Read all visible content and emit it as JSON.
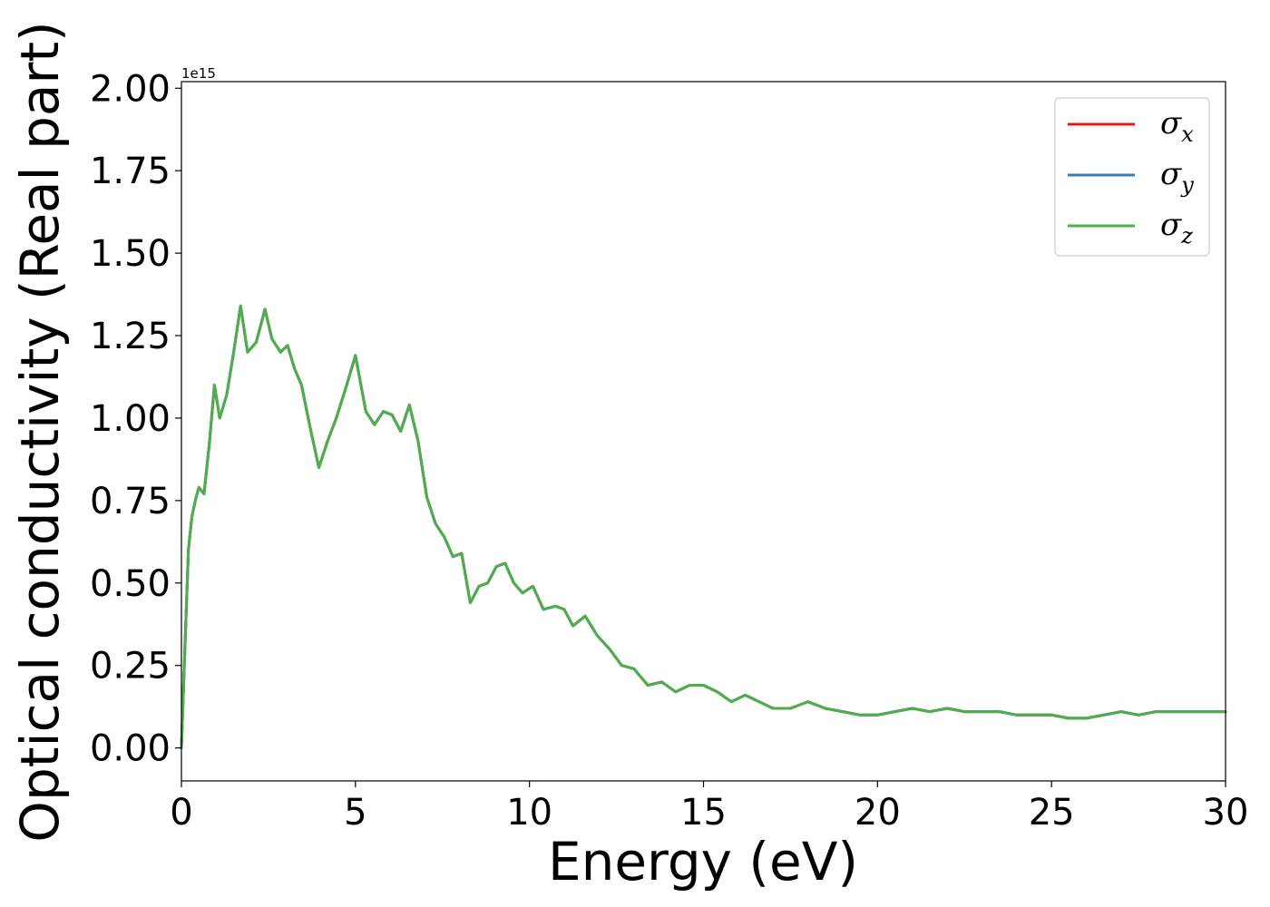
{
  "chart_data": {
    "type": "line",
    "xlabel": "Energy (eV)",
    "ylabel": "Optical conductivity (Real part)",
    "y_offset_text": "1e15",
    "xlim": [
      0,
      30
    ],
    "ylim": [
      -0.1,
      2.02
    ],
    "y_scale": 1000000000000000.0,
    "x_ticks": [
      0,
      5,
      10,
      15,
      20,
      25,
      30
    ],
    "x_tick_labels": [
      "0",
      "5",
      "10",
      "15",
      "20",
      "25",
      "30"
    ],
    "y_ticks": [
      0.0,
      0.25,
      0.5,
      0.75,
      1.0,
      1.25,
      1.5,
      1.75,
      2.0
    ],
    "y_tick_labels": [
      "0.00",
      "0.25",
      "0.50",
      "0.75",
      "1.00",
      "1.25",
      "1.50",
      "1.75",
      "2.00"
    ],
    "grid": false,
    "legend_position": "top-right",
    "x": [
      0,
      0.1,
      0.2,
      0.3,
      0.4,
      0.5,
      0.65,
      0.8,
      0.95,
      1.1,
      1.3,
      1.5,
      1.7,
      1.9,
      2.15,
      2.4,
      2.6,
      2.85,
      3.05,
      3.25,
      3.45,
      3.7,
      3.95,
      4.2,
      4.45,
      4.75,
      5.0,
      5.3,
      5.55,
      5.8,
      6.05,
      6.3,
      6.55,
      6.8,
      7.05,
      7.3,
      7.55,
      7.8,
      8.05,
      8.3,
      8.55,
      8.8,
      9.05,
      9.3,
      9.55,
      9.8,
      10.1,
      10.4,
      10.75,
      11.0,
      11.25,
      11.6,
      11.95,
      12.3,
      12.65,
      13.0,
      13.4,
      13.8,
      14.2,
      14.6,
      15.0,
      15.4,
      15.8,
      16.2,
      16.6,
      17.0,
      17.5,
      18.0,
      18.5,
      19.0,
      19.5,
      20.0,
      20.5,
      21.0,
      21.5,
      22.0,
      22.5,
      23.0,
      23.5,
      24.0,
      24.5,
      25.0,
      25.5,
      26.0,
      26.5,
      27.0,
      27.5,
      28.0,
      28.5,
      29.0,
      29.5,
      30.0
    ],
    "series": [
      {
        "name": "σ_x",
        "color": "#e41a1c",
        "values": [
          0.0,
          0.3,
          0.6,
          0.7,
          0.75,
          0.79,
          0.77,
          0.92,
          1.1,
          1.0,
          1.07,
          1.2,
          1.34,
          1.2,
          1.23,
          1.33,
          1.24,
          1.2,
          1.22,
          1.15,
          1.1,
          0.97,
          0.85,
          0.93,
          1.0,
          1.1,
          1.19,
          1.02,
          0.98,
          1.02,
          1.01,
          0.96,
          1.04,
          0.93,
          0.76,
          0.68,
          0.64,
          0.58,
          0.59,
          0.44,
          0.49,
          0.5,
          0.55,
          0.56,
          0.5,
          0.47,
          0.49,
          0.42,
          0.43,
          0.42,
          0.37,
          0.4,
          0.34,
          0.3,
          0.25,
          0.24,
          0.19,
          0.2,
          0.17,
          0.19,
          0.19,
          0.17,
          0.14,
          0.16,
          0.14,
          0.12,
          0.12,
          0.14,
          0.12,
          0.11,
          0.1,
          0.1,
          0.11,
          0.12,
          0.11,
          0.12,
          0.11,
          0.11,
          0.11,
          0.1,
          0.1,
          0.1,
          0.09,
          0.09,
          0.1,
          0.11,
          0.1,
          0.11,
          0.11,
          0.11,
          0.11,
          0.11
        ]
      },
      {
        "name": "σ_y",
        "color": "#377eb8",
        "values": [
          0.0,
          0.3,
          0.6,
          0.7,
          0.75,
          0.79,
          0.77,
          0.92,
          1.1,
          1.0,
          1.07,
          1.2,
          1.34,
          1.2,
          1.23,
          1.33,
          1.24,
          1.2,
          1.22,
          1.15,
          1.1,
          0.97,
          0.85,
          0.93,
          1.0,
          1.1,
          1.19,
          1.02,
          0.98,
          1.02,
          1.01,
          0.96,
          1.04,
          0.93,
          0.76,
          0.68,
          0.64,
          0.58,
          0.59,
          0.44,
          0.49,
          0.5,
          0.55,
          0.56,
          0.5,
          0.47,
          0.49,
          0.42,
          0.43,
          0.42,
          0.37,
          0.4,
          0.34,
          0.3,
          0.25,
          0.24,
          0.19,
          0.2,
          0.17,
          0.19,
          0.19,
          0.17,
          0.14,
          0.16,
          0.14,
          0.12,
          0.12,
          0.14,
          0.12,
          0.11,
          0.1,
          0.1,
          0.11,
          0.12,
          0.11,
          0.12,
          0.11,
          0.11,
          0.11,
          0.1,
          0.1,
          0.1,
          0.09,
          0.09,
          0.1,
          0.11,
          0.1,
          0.11,
          0.11,
          0.11,
          0.11,
          0.11
        ]
      },
      {
        "name": "σ_z",
        "color": "#4daf4a",
        "values": [
          0.0,
          0.3,
          0.6,
          0.7,
          0.75,
          0.79,
          0.77,
          0.92,
          1.1,
          1.0,
          1.07,
          1.2,
          1.34,
          1.2,
          1.23,
          1.33,
          1.24,
          1.2,
          1.22,
          1.15,
          1.1,
          0.97,
          0.85,
          0.93,
          1.0,
          1.1,
          1.19,
          1.02,
          0.98,
          1.02,
          1.01,
          0.96,
          1.04,
          0.93,
          0.76,
          0.68,
          0.64,
          0.58,
          0.59,
          0.44,
          0.49,
          0.5,
          0.55,
          0.56,
          0.5,
          0.47,
          0.49,
          0.42,
          0.43,
          0.42,
          0.37,
          0.4,
          0.34,
          0.3,
          0.25,
          0.24,
          0.19,
          0.2,
          0.17,
          0.19,
          0.19,
          0.17,
          0.14,
          0.16,
          0.14,
          0.12,
          0.12,
          0.14,
          0.12,
          0.11,
          0.1,
          0.1,
          0.11,
          0.12,
          0.11,
          0.12,
          0.11,
          0.11,
          0.11,
          0.1,
          0.1,
          0.1,
          0.09,
          0.09,
          0.1,
          0.11,
          0.1,
          0.11,
          0.11,
          0.11,
          0.11,
          0.11
        ]
      }
    ],
    "legend": [
      {
        "symbol": "σ",
        "sub": "x",
        "color": "#e41a1c"
      },
      {
        "symbol": "σ",
        "sub": "y",
        "color": "#377eb8"
      },
      {
        "symbol": "σ",
        "sub": "z",
        "color": "#4daf4a"
      }
    ]
  }
}
